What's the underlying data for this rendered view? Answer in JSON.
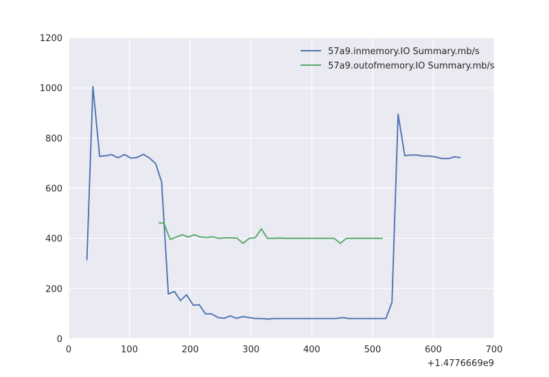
{
  "chart_data": {
    "type": "line",
    "title": "",
    "xlabel": "",
    "ylabel": "",
    "x_offset_label": "+1.4776669e9",
    "xlim": [
      0,
      700
    ],
    "ylim": [
      0,
      1200
    ],
    "xticks": [
      0,
      100,
      200,
      300,
      400,
      500,
      600,
      700
    ],
    "yticks": [
      0,
      200,
      400,
      600,
      800,
      1000,
      1200
    ],
    "grid": true,
    "legend_position": "top-right",
    "background": "#eaeaf2",
    "series": [
      {
        "name": "57a9.inmemory.IO Summary.mb/s",
        "color": "#4c72b0",
        "points": [
          [
            30,
            313
          ],
          [
            40,
            1005
          ],
          [
            51,
            727
          ],
          [
            61,
            729
          ],
          [
            71,
            734
          ],
          [
            81,
            721
          ],
          [
            92,
            734
          ],
          [
            102,
            720
          ],
          [
            112,
            722
          ],
          [
            123,
            735
          ],
          [
            133,
            720
          ],
          [
            143,
            698
          ],
          [
            153,
            625
          ],
          [
            164,
            178
          ],
          [
            174,
            188
          ],
          [
            184,
            152
          ],
          [
            194,
            175
          ],
          [
            205,
            133
          ],
          [
            215,
            135
          ],
          [
            225,
            99
          ],
          [
            235,
            99
          ],
          [
            246,
            84
          ],
          [
            256,
            81
          ],
          [
            266,
            91
          ],
          [
            276,
            81
          ],
          [
            287,
            88
          ],
          [
            297,
            84
          ],
          [
            307,
            80
          ],
          [
            317,
            80
          ],
          [
            328,
            78
          ],
          [
            338,
            80
          ],
          [
            348,
            80
          ],
          [
            358,
            80
          ],
          [
            369,
            80
          ],
          [
            379,
            80
          ],
          [
            389,
            80
          ],
          [
            399,
            80
          ],
          [
            410,
            80
          ],
          [
            420,
            80
          ],
          [
            430,
            80
          ],
          [
            440,
            80
          ],
          [
            451,
            84
          ],
          [
            461,
            80
          ],
          [
            471,
            80
          ],
          [
            481,
            80
          ],
          [
            492,
            80
          ],
          [
            502,
            80
          ],
          [
            512,
            80
          ],
          [
            522,
            80
          ],
          [
            532,
            145
          ],
          [
            542,
            895
          ],
          [
            553,
            730
          ],
          [
            563,
            732
          ],
          [
            573,
            732
          ],
          [
            583,
            728
          ],
          [
            594,
            728
          ],
          [
            604,
            724
          ],
          [
            614,
            718
          ],
          [
            625,
            718
          ],
          [
            635,
            725
          ],
          [
            645,
            722
          ]
        ]
      },
      {
        "name": "57a9.outofmemory.IO Summary.mb/s",
        "color": "#55a868",
        "points": [
          [
            148,
            462
          ],
          [
            157,
            460
          ],
          [
            167,
            395
          ],
          [
            177,
            405
          ],
          [
            187,
            414
          ],
          [
            197,
            405
          ],
          [
            207,
            414
          ],
          [
            217,
            405
          ],
          [
            227,
            403
          ],
          [
            237,
            406
          ],
          [
            247,
            400
          ],
          [
            257,
            402
          ],
          [
            267,
            402
          ],
          [
            277,
            401
          ],
          [
            287,
            380
          ],
          [
            297,
            400
          ],
          [
            307,
            402
          ],
          [
            317,
            438
          ],
          [
            327,
            400
          ],
          [
            337,
            400
          ],
          [
            347,
            401
          ],
          [
            357,
            400
          ],
          [
            367,
            400
          ],
          [
            377,
            400
          ],
          [
            387,
            400
          ],
          [
            397,
            400
          ],
          [
            407,
            400
          ],
          [
            417,
            400
          ],
          [
            427,
            400
          ],
          [
            437,
            400
          ],
          [
            447,
            380
          ],
          [
            457,
            400
          ],
          [
            467,
            400
          ],
          [
            477,
            400
          ],
          [
            487,
            400
          ],
          [
            497,
            400
          ],
          [
            507,
            400
          ],
          [
            517,
            400
          ]
        ]
      }
    ]
  }
}
